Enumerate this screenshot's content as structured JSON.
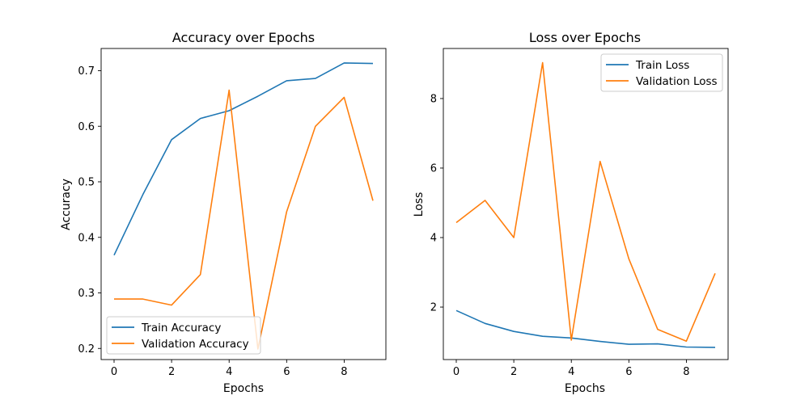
{
  "chart_data": [
    {
      "type": "line",
      "title": "Accuracy over Epochs",
      "xlabel": "Epochs",
      "ylabel": "Accuracy",
      "x": [
        0,
        1,
        2,
        3,
        4,
        5,
        6,
        7,
        8,
        9
      ],
      "xlim": [
        -0.45,
        9.45
      ],
      "ylim": [
        0.18,
        0.74
      ],
      "xticks": [
        0,
        2,
        4,
        6,
        8
      ],
      "yticks": [
        0.2,
        0.3,
        0.4,
        0.5,
        0.6,
        0.7
      ],
      "ytick_labels": [
        "0.2",
        "0.3",
        "0.4",
        "0.5",
        "0.6",
        "0.7"
      ],
      "grid": false,
      "legend_position": "lower-left",
      "series": [
        {
          "name": "Train Accuracy",
          "color": "#1f77b4",
          "values": [
            0.368,
            0.477,
            0.576,
            0.614,
            0.628,
            0.654,
            0.682,
            0.686,
            0.714,
            0.713
          ]
        },
        {
          "name": "Validation Accuracy",
          "color": "#ff7f0e",
          "values": [
            0.289,
            0.289,
            0.278,
            0.333,
            0.665,
            0.199,
            0.446,
            0.6,
            0.652,
            0.466
          ]
        }
      ]
    },
    {
      "type": "line",
      "title": "Loss over Epochs",
      "xlabel": "Epochs",
      "ylabel": "Loss",
      "x": [
        0,
        1,
        2,
        3,
        4,
        5,
        6,
        7,
        8,
        9
      ],
      "xlim": [
        -0.45,
        9.45
      ],
      "ylim": [
        0.49,
        9.44
      ],
      "xticks": [
        0,
        2,
        4,
        6,
        8
      ],
      "yticks": [
        2,
        4,
        6,
        8
      ],
      "ytick_labels": [
        "2",
        "4",
        "6",
        "8"
      ],
      "grid": false,
      "legend_position": "top-right",
      "series": [
        {
          "name": "Train Loss",
          "color": "#1f77b4",
          "values": [
            1.9,
            1.53,
            1.3,
            1.16,
            1.11,
            1.01,
            0.93,
            0.94,
            0.85,
            0.84
          ]
        },
        {
          "name": "Validation Loss",
          "color": "#ff7f0e",
          "values": [
            4.43,
            5.07,
            4.0,
            9.03,
            1.05,
            6.19,
            3.39,
            1.36,
            1.02,
            2.97
          ]
        }
      ]
    }
  ]
}
